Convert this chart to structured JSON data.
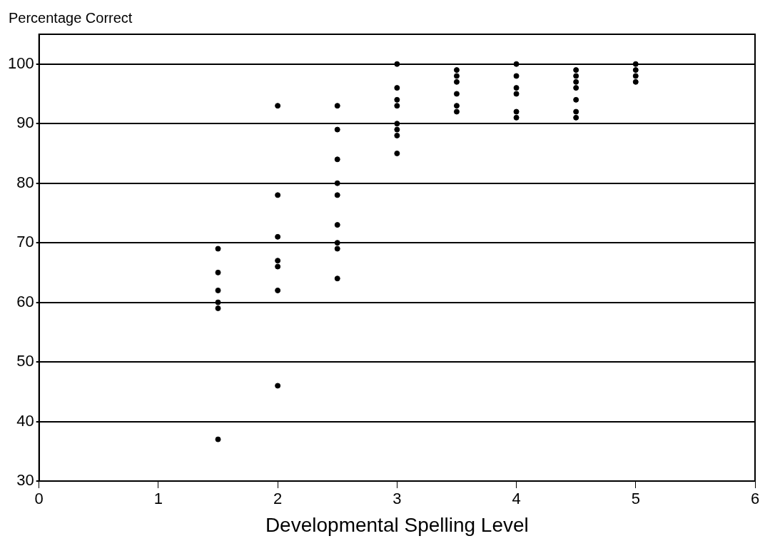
{
  "chart_data": {
    "type": "scatter",
    "xlabel": "Developmental Spelling Level",
    "ylabel": "Percentage Correct",
    "series": [
      {
        "color": "#000000",
        "x": [
          1.5,
          1.5,
          1.5,
          1.5,
          1.5,
          1.5,
          2,
          2,
          2,
          2,
          2,
          2,
          2,
          2.5,
          2.5,
          2.5,
          2.5,
          2.5,
          2.5,
          2.5,
          2.5,
          2.5,
          3,
          3,
          3,
          3,
          3,
          3,
          3,
          3,
          3.5,
          3.5,
          3.5,
          3.5,
          3.5,
          3.5,
          4,
          4,
          4,
          4,
          4,
          4,
          4.5,
          4.5,
          4.5,
          4.5,
          4.5,
          4.5,
          4.5,
          5,
          5,
          5,
          5
        ],
        "values": [
          69,
          65,
          62,
          60,
          59,
          37,
          93,
          78,
          71,
          67,
          66,
          62,
          46,
          93,
          89,
          84,
          80,
          78,
          73,
          70,
          69,
          64,
          100,
          96,
          94,
          93,
          90,
          89,
          88,
          85,
          99,
          98,
          97,
          95,
          93,
          92,
          100,
          98,
          96,
          95,
          92,
          91,
          99,
          98,
          97,
          96,
          94,
          92,
          91,
          100,
          99,
          98,
          97
        ]
      }
    ],
    "xlim": [
      0,
      6
    ],
    "xticks": [
      0,
      1,
      2,
      3,
      4,
      5,
      6
    ],
    "ylim": [
      30,
      105
    ],
    "yticks": [
      30,
      40,
      50,
      60,
      70,
      80,
      90,
      100
    ],
    "grid": "y",
    "marker": "circle",
    "legend": false
  }
}
